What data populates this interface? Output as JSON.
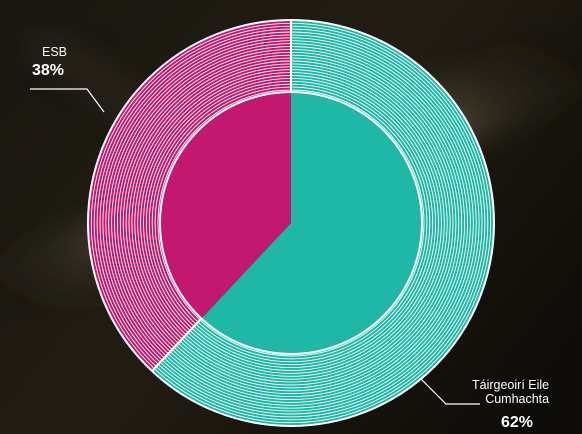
{
  "chart_data": {
    "type": "pie",
    "donut": true,
    "title": "",
    "slices": [
      {
        "label": "Táirgeoirí Eile Cumhachta",
        "label_lines": [
          "Táirgeoirí Eile",
          "Cumhachta"
        ],
        "value": 62,
        "value_label": "62%",
        "color": "#1fb7a6"
      },
      {
        "label": "ESB",
        "label_lines": [
          "ESB"
        ],
        "value": 38,
        "value_label": "38%",
        "color": "#c2186f"
      }
    ],
    "legend": "none",
    "stripe_color": "#ffffff"
  }
}
